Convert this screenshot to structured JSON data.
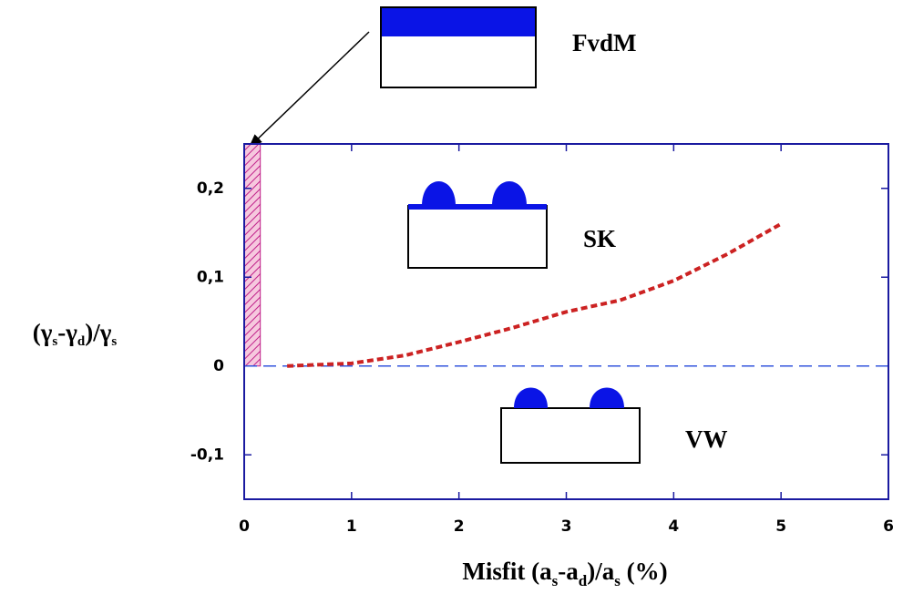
{
  "chart_data": {
    "type": "line",
    "x_label_parts": [
      "Misfit (a",
      "s",
      "-a",
      "d",
      ")/a",
      "s",
      " (%)"
    ],
    "y_label_parts": [
      "(γ",
      "s",
      "-γ",
      "d",
      ")/γ",
      "s"
    ],
    "x": [
      0.4,
      1,
      1.5,
      2,
      2.5,
      3,
      3.5,
      4,
      4.5,
      5
    ],
    "series": [
      {
        "color": "#cc2222",
        "values": [
          0,
          0.003,
          0.012,
          0.027,
          0.043,
          0.061,
          0.074,
          0.096,
          0.126,
          0.16
        ]
      }
    ],
    "xlim": [
      0,
      6
    ],
    "xticks": [
      0,
      1,
      2,
      3,
      4,
      5,
      6
    ],
    "ylim": [
      -0.15,
      0.25
    ],
    "yticks": [
      {
        "value": 0.2,
        "label": "0,2"
      },
      {
        "value": 0.1,
        "label": "0,1"
      },
      0,
      {
        "value": -0.1,
        "label": "-0,1"
      }
    ],
    "hatched_xrange": [
      0,
      0.15
    ],
    "annotations": [
      "FvdM",
      "SK",
      "VW"
    ]
  }
}
